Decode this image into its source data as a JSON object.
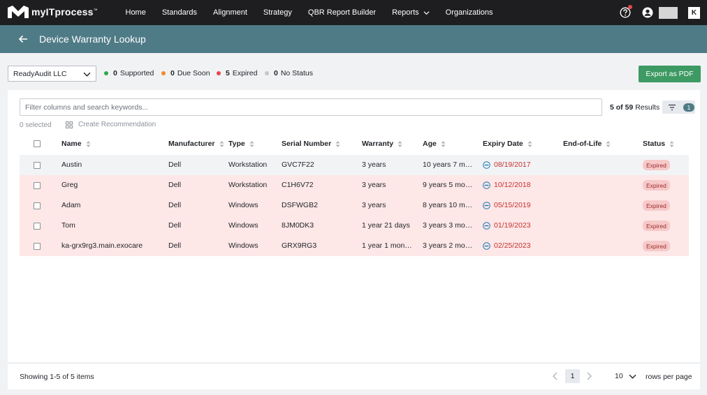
{
  "app": {
    "logo_text": "myITprocess",
    "logo_tm": "™",
    "nav": [
      "Home",
      "Standards",
      "Alignment",
      "Strategy",
      "QBR Report Builder",
      "Reports",
      "Organizations"
    ],
    "right_badge": "K"
  },
  "header": {
    "title": "Device Warranty Lookup"
  },
  "filters": {
    "company": "ReadyAudit LLC",
    "legend": [
      {
        "count": "0",
        "label": "Supported",
        "color": "#2fa84f"
      },
      {
        "count": "0",
        "label": "Due Soon",
        "color": "#f28c28"
      },
      {
        "count": "5",
        "label": "Expired",
        "color": "#e5484d"
      },
      {
        "count": "0",
        "label": "No Status",
        "color": "#c3c6cb"
      }
    ],
    "export_label": "Export as PDF"
  },
  "table": {
    "search_placeholder": "Filter columns and search keywords...",
    "results_shown": "5 of 59",
    "results_label": "Results",
    "filter_count": "1",
    "selected_text": "0 selected",
    "create_recommendation": "Create Recommendation",
    "columns": [
      "Name",
      "Manufacturer",
      "Type",
      "Serial Number",
      "Warranty",
      "Age",
      "Expiry Date",
      "End-of-Life",
      "Status"
    ],
    "rows": [
      {
        "name": "Austin",
        "manufacturer": "Dell",
        "type": "Workstation",
        "serial": "GVC7F22",
        "warranty": "3 years",
        "age": "10 years 7 m…",
        "expiry": "08/19/2017",
        "eol": "",
        "status": "Expired"
      },
      {
        "name": "Greg",
        "manufacturer": "Dell",
        "type": "Workstation",
        "serial": "C1H6V72",
        "warranty": "3 years",
        "age": "9 years 5 mo…",
        "expiry": "10/12/2018",
        "eol": "",
        "status": "Expired"
      },
      {
        "name": "Adam",
        "manufacturer": "Dell",
        "type": "Windows",
        "serial": "DSFWGB2",
        "warranty": "3 years",
        "age": "8 years 10 m…",
        "expiry": "05/15/2019",
        "eol": "",
        "status": "Expired"
      },
      {
        "name": "Tom",
        "manufacturer": "Dell",
        "type": "Windows",
        "serial": "8JM0DK3",
        "warranty": "1 year 21 days",
        "age": "3 years 3 mo…",
        "expiry": "01/19/2023",
        "eol": "",
        "status": "Expired"
      },
      {
        "name": "ka-grx9rg3.main.exocare",
        "manufacturer": "Dell",
        "type": "Windows",
        "serial": "GRX9RG3",
        "warranty": "1 year 1 mon…",
        "age": "3 years 2 mo…",
        "expiry": "02/25/2023",
        "eol": "",
        "status": "Expired"
      }
    ]
  },
  "footer": {
    "showing": "Showing 1-5 of 5 items",
    "page": "1",
    "rows_per_page_value": "10",
    "rows_per_page_label": "rows per page"
  }
}
